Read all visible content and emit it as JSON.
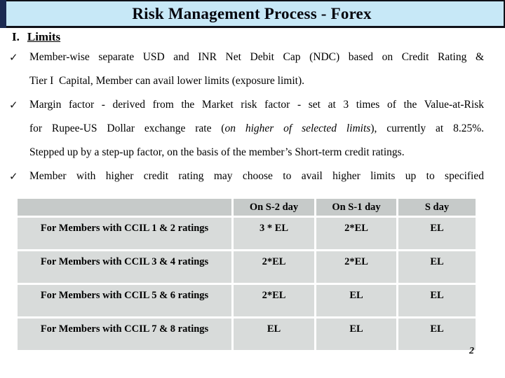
{
  "slide": {
    "title": "Risk Management Process - Forex",
    "page_number": "2",
    "colors": {
      "title_bar_bg": "#c7e8f7",
      "corner_accent": "#1b2a52",
      "table_header_bg": "#c6cac9",
      "table_cell_bg": "#d8dbda"
    }
  },
  "heading": {
    "numeral": "I.",
    "label": "Limits"
  },
  "bullets": [
    {
      "marker": "✓",
      "line1": "Member-wise separate USD and INR Net Debit Cap (NDC) based on Credit Rating &",
      "line2": "Tier I  Capital, Member can avail lower limits (exposure limit)."
    },
    {
      "marker": "✓",
      "line1": "Margin factor - derived from the Market risk factor - set at 3 times of the Value-at-Risk",
      "line2_pre": "for Rupee-US Dollar exchange rate (",
      "line2_italic": "on higher of selected limits",
      "line2_post": "), currently at 8.25%.",
      "line3": "Stepped up by a step-up factor, on the basis of the member’s Short-term credit ratings."
    },
    {
      "marker": "✓",
      "line1": "Member with higher credit rating may choose to avail higher limits up to specified"
    }
  ],
  "table": {
    "header": [
      "",
      "On S-2 day",
      "On S-1 day",
      "S day"
    ],
    "rows": [
      {
        "label": "For Members with CCIL 1 & 2 ratings",
        "values": [
          "3 * EL",
          "2*EL",
          "EL"
        ]
      },
      {
        "label": "For Members with CCIL 3 & 4 ratings",
        "values": [
          "2*EL",
          "2*EL",
          "EL"
        ]
      },
      {
        "label": "For Members with CCIL 5 & 6 ratings",
        "values": [
          "2*EL",
          "EL",
          "EL"
        ]
      },
      {
        "label": "For Members with CCIL 7 & 8 ratings",
        "values": [
          "EL",
          "EL",
          "EL"
        ]
      }
    ]
  }
}
